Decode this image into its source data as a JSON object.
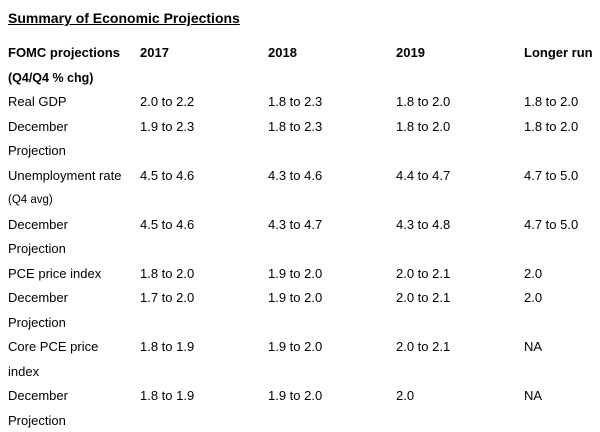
{
  "title": "Summary of Economic Projections",
  "table": {
    "header": {
      "label_line1": "FOMC projections",
      "label_line2": "(Q4/Q4 % chg)",
      "year1": "2017",
      "year2": "2018",
      "year3": "2019",
      "longer_run": "Longer run"
    },
    "rows": [
      {
        "label1": "Real GDP",
        "label2": "",
        "v2017": "2.0 to 2.2",
        "v2018": "1.8 to 2.3",
        "v2019": "1.8 to 2.0",
        "longer": "1.8 to 2.0"
      },
      {
        "label1": "December",
        "label2": "Projection",
        "v2017": "1.9 to 2.3",
        "v2018": "1.8 to 2.3",
        "v2019": "1.8 to 2.0",
        "longer": "1.8 to 2.0"
      },
      {
        "label1": "Unemployment rate",
        "label2": "(Q4 avg)",
        "v2017": "4.5 to 4.6",
        "v2018": "4.3 to 4.6",
        "v2019": "4.4 to 4.7",
        "longer": "4.7 to 5.0"
      },
      {
        "label1": "December",
        "label2": "Projection",
        "v2017": "4.5 to 4.6",
        "v2018": "4.3 to 4.7",
        "v2019": "4.3 to 4.8",
        "longer": "4.7 to 5.0"
      },
      {
        "label1": "PCE price index",
        "label2": "",
        "v2017": "1.8 to 2.0",
        "v2018": "1.9 to 2.0",
        "v2019": "2.0 to 2.1",
        "longer": "2.0"
      },
      {
        "label1": "December",
        "label2": "Projection",
        "v2017": "1.7 to 2.0",
        "v2018": "1.9 to 2.0",
        "v2019": "2.0 to 2.1",
        "longer": "2.0"
      },
      {
        "label1": "Core PCE price",
        "label2": "index",
        "v2017": "1.8 to 1.9",
        "v2018": "1.9 to 2.0",
        "v2019": "2.0 to 2.1",
        "longer": "NA"
      },
      {
        "label1": "December",
        "label2": "Projection",
        "v2017": "1.8 to 1.9",
        "v2018": "1.9 to 2.0",
        "v2019": "2.0",
        "longer": "NA"
      }
    ]
  }
}
